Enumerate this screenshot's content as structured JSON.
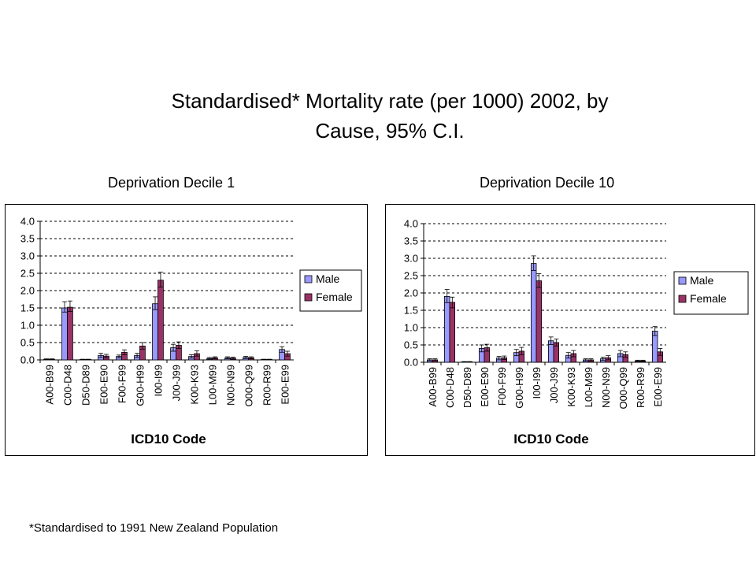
{
  "page": {
    "title_line1": "Standardised*  Mortality rate (per 1000) 2002, by",
    "title_line2": "Cause, 95% C.I.",
    "footnote": "*Standardised to 1991 New Zealand Population"
  },
  "colors": {
    "male": "#9999ff",
    "female": "#993366",
    "grid": "#000000"
  },
  "chart_data": [
    {
      "type": "bar",
      "title": "Deprivation Decile 1",
      "xlabel": "ICD10 Code",
      "ylabel": "",
      "ylim": [
        0,
        4
      ],
      "yticks": [
        "0.0",
        "0.5",
        "1.0",
        "1.5",
        "2.0",
        "2.5",
        "3.0",
        "3.5",
        "4.0"
      ],
      "grid": true,
      "legend_position": "right",
      "categories": [
        "A00-B99",
        "C00-D48",
        "D50-D89",
        "E00-E90",
        "F00-F99",
        "G00-H99",
        "I00-I99",
        "J00-J99",
        "K00-K93",
        "L00-M99",
        "N00-N99",
        "O00-Q99",
        "R00-R99",
        "E00-E99"
      ],
      "series": [
        {
          "name": "Male",
          "values": [
            0.02,
            1.5,
            0.01,
            0.13,
            0.1,
            0.13,
            1.62,
            0.35,
            0.1,
            0.04,
            0.06,
            0.07,
            0.01,
            0.3
          ],
          "ci_low": [
            0.01,
            1.38,
            0.0,
            0.07,
            0.06,
            0.07,
            1.45,
            0.25,
            0.05,
            0.02,
            0.03,
            0.04,
            0.0,
            0.22
          ],
          "ci_high": [
            0.03,
            1.68,
            0.02,
            0.19,
            0.14,
            0.19,
            1.82,
            0.45,
            0.15,
            0.07,
            0.09,
            0.1,
            0.02,
            0.38
          ]
        },
        {
          "name": "Female",
          "values": [
            0.02,
            1.52,
            0.01,
            0.11,
            0.22,
            0.4,
            2.3,
            0.42,
            0.18,
            0.06,
            0.05,
            0.06,
            0.01,
            0.18
          ],
          "ci_low": [
            0.01,
            1.4,
            0.0,
            0.06,
            0.15,
            0.31,
            2.1,
            0.33,
            0.11,
            0.03,
            0.02,
            0.03,
            0.0,
            0.11
          ],
          "ci_high": [
            0.03,
            1.7,
            0.02,
            0.16,
            0.29,
            0.5,
            2.53,
            0.52,
            0.26,
            0.09,
            0.08,
            0.09,
            0.02,
            0.25
          ]
        }
      ]
    },
    {
      "type": "bar",
      "title": "Deprivation Decile 10",
      "xlabel": "ICD10 Code",
      "ylabel": "",
      "ylim": [
        0,
        4
      ],
      "yticks": [
        "0.0",
        "0.5",
        "1.0",
        "1.5",
        "2.0",
        "2.5",
        "3.0",
        "3.5",
        "4.0"
      ],
      "grid": true,
      "legend_position": "right",
      "categories": [
        "A00-B99",
        "C00-D48",
        "D50-D89",
        "E00-E90",
        "F00-F99",
        "G00-H99",
        "I00-I99",
        "J00-J99",
        "K00-K93",
        "L00-M99",
        "N00-N99",
        "O00-Q99",
        "R00-R99",
        "E00-E99"
      ],
      "series": [
        {
          "name": "Male",
          "values": [
            0.07,
            1.9,
            0.01,
            0.4,
            0.12,
            0.28,
            2.85,
            0.62,
            0.2,
            0.07,
            0.1,
            0.25,
            0.04,
            0.9
          ],
          "ci_low": [
            0.04,
            1.72,
            0.0,
            0.3,
            0.07,
            0.19,
            2.65,
            0.51,
            0.12,
            0.03,
            0.05,
            0.16,
            0.02,
            0.77
          ],
          "ci_high": [
            0.1,
            2.1,
            0.02,
            0.5,
            0.17,
            0.37,
            3.07,
            0.73,
            0.28,
            0.1,
            0.15,
            0.34,
            0.06,
            1.03
          ]
        },
        {
          "name": "Female",
          "values": [
            0.07,
            1.73,
            0.01,
            0.42,
            0.13,
            0.32,
            2.35,
            0.57,
            0.25,
            0.07,
            0.13,
            0.22,
            0.04,
            0.3
          ],
          "ci_low": [
            0.04,
            1.57,
            0.0,
            0.32,
            0.08,
            0.22,
            2.16,
            0.47,
            0.16,
            0.03,
            0.07,
            0.14,
            0.02,
            0.2
          ],
          "ci_high": [
            0.1,
            1.88,
            0.02,
            0.52,
            0.18,
            0.43,
            2.56,
            0.67,
            0.34,
            0.1,
            0.19,
            0.3,
            0.06,
            0.4
          ]
        }
      ]
    }
  ]
}
